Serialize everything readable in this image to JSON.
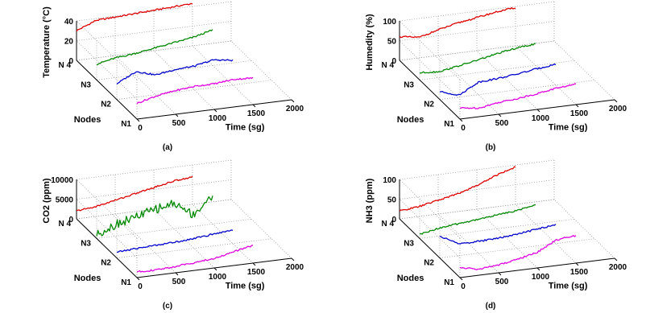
{
  "figure": {
    "xlabel": "Time (sg)",
    "nodes_label": "Nodes",
    "x_ticks": [
      "0",
      "500",
      "1000",
      "1500",
      "2000"
    ],
    "node_ticks": [
      "N1",
      "N2",
      "N3",
      "N 4"
    ],
    "line_colors": {
      "N1": "#e000e0",
      "N2": "#0000cc",
      "N3": "#008800",
      "N4": "#dd0000"
    }
  },
  "chart_data": [
    {
      "type": "line",
      "panel": "(a)",
      "zlabel": "Temperature (°C)",
      "z_ticks": [
        "0",
        "20",
        "40"
      ],
      "zlim": [
        0,
        40
      ],
      "xlim": [
        0,
        2000
      ],
      "grid": true,
      "x": [
        0,
        250,
        500,
        750,
        1000,
        1250,
        1500
      ],
      "series": [
        {
          "name": "N4",
          "values": [
            30,
            38,
            39,
            40,
            41,
            42,
            43
          ]
        },
        {
          "name": "N3",
          "values": [
            16,
            20,
            22,
            25,
            28,
            31,
            36
          ]
        },
        {
          "name": "N2",
          "values": [
            16,
            26,
            20,
            23,
            24,
            28,
            25
          ]
        },
        {
          "name": "N1",
          "values": [
            16,
            21,
            24,
            26,
            26,
            28,
            27
          ]
        }
      ]
    },
    {
      "type": "line",
      "panel": "(b)",
      "zlabel": "Humedity (%)",
      "z_ticks": [
        "0",
        "50",
        "100"
      ],
      "zlim": [
        0,
        100
      ],
      "xlim": [
        0,
        2000
      ],
      "grid": true,
      "x": [
        0,
        250,
        500,
        750,
        1000,
        1250,
        1500
      ],
      "series": [
        {
          "name": "N4",
          "values": [
            60,
            52,
            65,
            76,
            84,
            92,
            97
          ]
        },
        {
          "name": "N3",
          "values": [
            18,
            15,
            23,
            32,
            42,
            50,
            55
          ]
        },
        {
          "name": "N2",
          "values": [
            20,
            5,
            32,
            35,
            40,
            47,
            53
          ]
        },
        {
          "name": "N1",
          "values": [
            28,
            22,
            30,
            34,
            40,
            48,
            52
          ]
        }
      ]
    },
    {
      "type": "line",
      "panel": "(c)",
      "zlabel": "CO2 (ppm)",
      "z_ticks": [
        "0",
        "5000",
        "10000"
      ],
      "zlim": [
        0,
        10000
      ],
      "xlim": [
        0,
        2000
      ],
      "grid": true,
      "x": [
        0,
        250,
        500,
        750,
        1000,
        1250,
        1500
      ],
      "series": [
        {
          "name": "N4",
          "values": [
            2000,
            2500,
            3500,
            4500,
            5500,
            6500,
            7000
          ]
        },
        {
          "name": "N3",
          "values": [
            1000,
            3000,
            4200,
            5500,
            6500,
            3000,
            7000
          ]
        },
        {
          "name": "N2",
          "values": [
            1500,
            1800,
            2000,
            2200,
            2500,
            3000,
            3500
          ]
        },
        {
          "name": "N1",
          "values": [
            1500,
            1300,
            1600,
            2000,
            2400,
            3500,
            4500
          ]
        }
      ]
    },
    {
      "type": "line",
      "panel": "(d)",
      "zlabel": "NH3 (ppm)",
      "z_ticks": [
        "0",
        "50",
        "100"
      ],
      "zlim": [
        0,
        100
      ],
      "xlim": [
        0,
        2000
      ],
      "grid": true,
      "x": [
        0,
        250,
        500,
        750,
        1000,
        1250,
        1500
      ],
      "series": [
        {
          "name": "N4",
          "values": [
            20,
            25,
            35,
            45,
            60,
            80,
            95
          ]
        },
        {
          "name": "N3",
          "values": [
            10,
            20,
            25,
            30,
            35,
            40,
            48
          ]
        },
        {
          "name": "N2",
          "values": [
            55,
            30,
            30,
            32,
            36,
            42,
            48
          ]
        },
        {
          "name": "N1",
          "values": [
            25,
            15,
            20,
            28,
            40,
            65,
            70
          ]
        }
      ]
    }
  ]
}
